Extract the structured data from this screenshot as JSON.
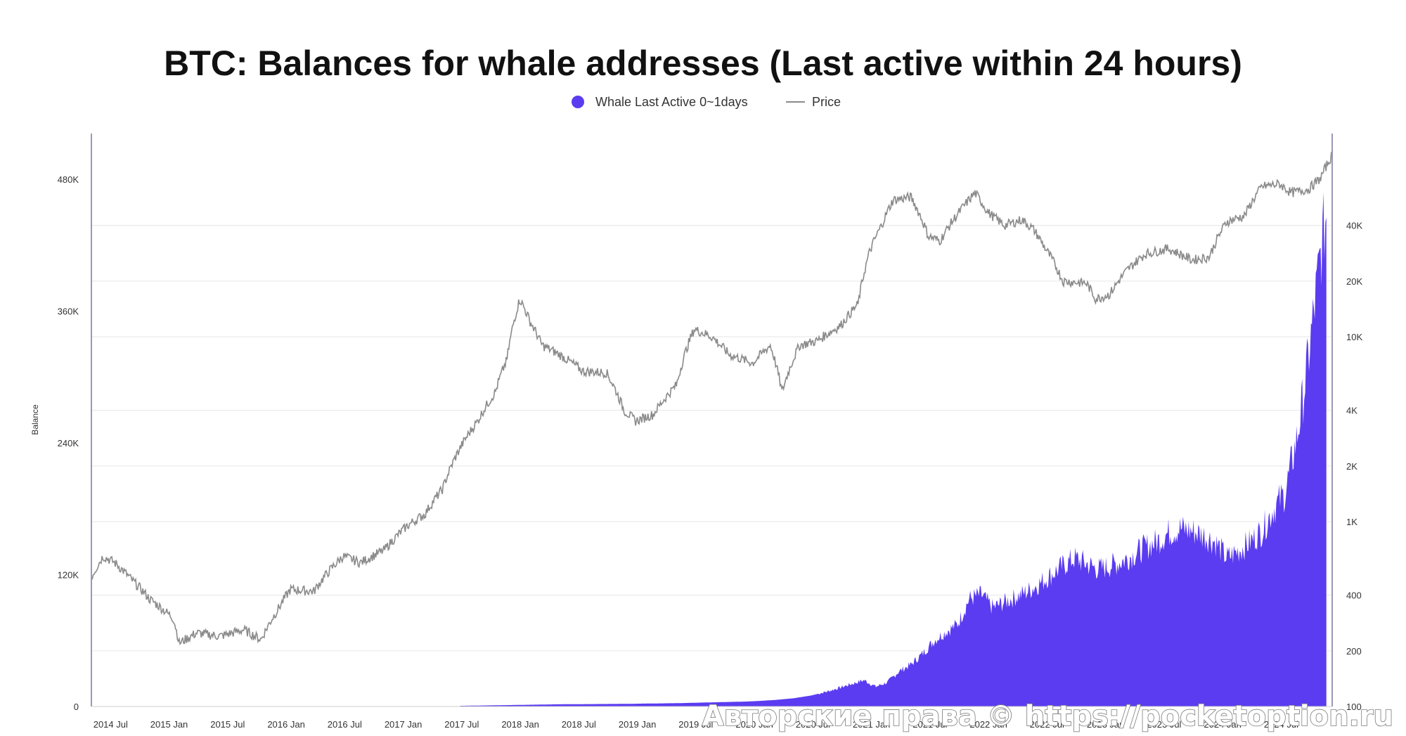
{
  "chart_data": {
    "type": "area",
    "title": "BTC: Balances for whale addresses (Last active within 24 hours)",
    "ylabel": "Balance",
    "ylim": [
      0,
      480000
    ],
    "y_ticks": [
      "0",
      "120K",
      "240K",
      "360K",
      "480K"
    ],
    "y_tick_values": [
      0,
      120000,
      240000,
      360000,
      480000
    ],
    "y2_scale": "log",
    "y2_ticks": [
      "100",
      "200",
      "400",
      "1K",
      "2K",
      "4K",
      "10K",
      "20K",
      "40K"
    ],
    "y2_tick_values": [
      100,
      200,
      400,
      1000,
      2000,
      4000,
      10000,
      20000,
      40000
    ],
    "x_ticks": [
      "2014 Jul",
      "2015 Jan",
      "2015 Jul",
      "2016 Jan",
      "2016 Jul",
      "2017 Jan",
      "2017 Jul",
      "2018 Jan",
      "2018 Jul",
      "2019 Jan",
      "2019 Jul",
      "2020 Jan",
      "2020 Jul",
      "2021 Jan",
      "2021 Jul",
      "2022 Jan",
      "2022 Jul",
      "2023 Jan",
      "2023 Jul",
      "2024 Jan",
      "2024 Jul"
    ],
    "legend_position": "top-center",
    "grid": true,
    "colors": {
      "whale": "#5b3cf0",
      "price": "#8a8a8a",
      "axis": "#9c97b8",
      "grid": "#e6e6e6"
    },
    "series": [
      {
        "name": "Whale Last Active 0~1days",
        "axis": "left",
        "style": "area",
        "x": [
          2017.45,
          2017.7,
          2018.0,
          2018.3,
          2018.6,
          2018.9,
          2019.0,
          2019.3,
          2019.5,
          2019.7,
          2019.9,
          2020.0,
          2020.15,
          2020.3,
          2020.45,
          2020.6,
          2020.75,
          2020.9,
          2021.0,
          2021.1,
          2021.2,
          2021.3,
          2021.4,
          2021.5,
          2021.6,
          2021.7,
          2021.8,
          2021.9,
          2022.0,
          2022.1,
          2022.2,
          2022.3,
          2022.4,
          2022.5,
          2022.6,
          2022.7,
          2022.8,
          2022.9,
          2023.0,
          2023.1,
          2023.2,
          2023.3,
          2023.4,
          2023.5,
          2023.6,
          2023.7,
          2023.8,
          2023.9,
          2024.0,
          2024.1,
          2024.2,
          2024.3,
          2024.4,
          2024.5,
          2024.55,
          2024.6,
          2024.65,
          2024.7,
          2024.75,
          2024.8,
          2024.85,
          2024.9
        ],
        "values": [
          600,
          1000,
          1500,
          2000,
          2200,
          2400,
          2600,
          3000,
          3500,
          4000,
          4500,
          5000,
          6000,
          7500,
          10000,
          14000,
          19000,
          24000,
          18000,
          22000,
          32000,
          38000,
          48000,
          60000,
          68000,
          75000,
          98000,
          102000,
          90000,
          95000,
          100000,
          105000,
          112000,
          120000,
          128000,
          135000,
          130000,
          125000,
          128000,
          132000,
          138000,
          145000,
          150000,
          158000,
          162000,
          160000,
          156000,
          150000,
          135000,
          142000,
          150000,
          160000,
          180000,
          195000,
          220000,
          245000,
          280000,
          320000,
          365000,
          410000,
          450000,
          0
        ]
      },
      {
        "name": "Price",
        "axis": "right",
        "style": "line",
        "x": [
          2014.3,
          2014.4,
          2014.5,
          2014.65,
          2014.8,
          2015.0,
          2015.05,
          2015.2,
          2015.4,
          2015.6,
          2015.75,
          2015.9,
          2016.0,
          2016.2,
          2016.45,
          2016.6,
          2016.8,
          2017.0,
          2017.15,
          2017.3,
          2017.45,
          2017.6,
          2017.75,
          2017.85,
          2017.96,
          2018.05,
          2018.15,
          2018.3,
          2018.5,
          2018.7,
          2018.85,
          2018.95,
          2019.1,
          2019.3,
          2019.45,
          2019.6,
          2019.75,
          2019.95,
          2020.1,
          2020.2,
          2020.35,
          2020.5,
          2020.7,
          2020.85,
          2020.95,
          2021.05,
          2021.15,
          2021.3,
          2021.45,
          2021.55,
          2021.7,
          2021.85,
          2021.96,
          2022.1,
          2022.25,
          2022.35,
          2022.45,
          2022.6,
          2022.8,
          2022.88,
          2023.0,
          2023.15,
          2023.3,
          2023.5,
          2023.7,
          2023.85,
          2024.0,
          2024.15,
          2024.3,
          2024.45,
          2024.55,
          2024.7,
          2024.8,
          2024.9
        ],
        "values": [
          500,
          650,
          600,
          480,
          380,
          300,
          220,
          250,
          240,
          260,
          230,
          340,
          430,
          420,
          650,
          600,
          700,
          950,
          1100,
          1500,
          2500,
          3500,
          5000,
          7500,
          16000,
          12000,
          9000,
          8000,
          6500,
          6400,
          4000,
          3500,
          3800,
          5500,
          11000,
          10000,
          8000,
          7200,
          9000,
          5000,
          9000,
          9500,
          11500,
          15000,
          29000,
          40000,
          55000,
          57000,
          35000,
          33000,
          46000,
          60000,
          47000,
          40000,
          43000,
          38000,
          30000,
          20000,
          19500,
          16000,
          17000,
          23000,
          28000,
          30000,
          26000,
          27000,
          42000,
          45000,
          65000,
          67000,
          60000,
          63000,
          72000,
          96000
        ]
      }
    ]
  },
  "watermark": "Авторские права © https://pocketoption.ru"
}
